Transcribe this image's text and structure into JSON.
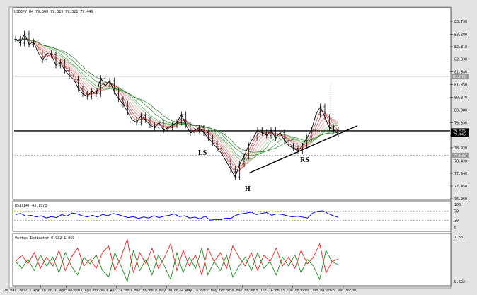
{
  "chart_data": [
    {
      "type": "line",
      "title": "USDJPY,H4  79.500 79.513 79.321 79.446",
      "symbol": "USDJPY,H4",
      "ohlc": {
        "open": 79.5,
        "high": 79.513,
        "low": 79.321,
        "close": 79.446
      },
      "ylim": [
        76.96,
        84.28
      ],
      "y_ticks": [
        "83.790",
        "83.280",
        "82.810",
        "82.330",
        "81.840",
        "81.350",
        "80.870",
        "80.380",
        "79.890",
        "79.400",
        "78.920",
        "78.420",
        "77.940",
        "77.450",
        "76.960"
      ],
      "highlighted_prices": [
        "81.672",
        "79.575",
        "79.446",
        "78.635"
      ],
      "x_ticks": [
        "26 Mar 2012",
        "3 Apr 16:00",
        "10 Apr 08:00",
        "17 Apr 00:00",
        "23 Apr 16:00",
        "1 May 08:00",
        "8 May 00:00",
        "14 May 16:00",
        "22 May 08:00",
        "30 May 00:00",
        "5 Jun 16:00",
        "13 Jun 08:00",
        "20 Jun 00:00",
        "26 Jun 16:00"
      ],
      "price_series": [
        83.1,
        82.95,
        83.3,
        82.9,
        83.0,
        82.6,
        82.3,
        82.55,
        82.5,
        82.1,
        82.2,
        81.9,
        81.7,
        81.55,
        81.2,
        81.0,
        80.9,
        81.1,
        81.0,
        81.6,
        81.3,
        81.5,
        81.1,
        80.8,
        80.6,
        80.3,
        80.0,
        79.9,
        80.15,
        80.0,
        79.8,
        79.7,
        79.9,
        79.6,
        79.7,
        79.8,
        79.9,
        80.2,
        79.8,
        79.5,
        79.6,
        79.7,
        79.5,
        79.3,
        79.1,
        78.9,
        78.7,
        78.4,
        78.1,
        77.8,
        78.3,
        78.6,
        79.0,
        79.3,
        79.6,
        79.5,
        79.4,
        79.6,
        79.3,
        79.5,
        79.2,
        79.0,
        78.9,
        78.8,
        79.0,
        79.3,
        79.6,
        80.2,
        80.5,
        80.1,
        79.7,
        79.6,
        79.45
      ],
      "annotations": [
        "LS",
        "H",
        "RS"
      ],
      "indicator_type": "moving average ribbon"
    },
    {
      "type": "line",
      "title": "RSI(14) 43.1573",
      "levels": [
        "100",
        "70",
        "30",
        "0"
      ],
      "values": [
        55,
        60,
        48,
        52,
        45,
        50,
        40,
        46,
        42,
        55,
        48,
        62,
        58,
        50,
        45,
        52,
        44,
        56,
        50,
        60,
        55,
        48,
        42,
        46,
        38,
        45,
        40,
        50,
        42,
        48,
        52,
        58,
        46,
        50,
        40,
        44,
        36,
        48,
        30,
        34,
        32,
        40,
        38,
        52,
        58,
        62,
        66,
        55,
        60,
        64,
        52,
        58,
        56,
        50,
        45,
        48,
        44,
        40,
        62,
        70,
        72,
        60,
        50,
        43
      ]
    },
    {
      "type": "line",
      "title": "Vortex Indicator 0.932 1.059",
      "levels": [
        "1.581",
        "0.522"
      ],
      "series": [
        {
          "color": "#ff0000",
          "values": [
            1.0,
            1.15,
            0.95,
            1.2,
            0.85,
            1.1,
            0.9,
            1.25,
            0.8,
            1.1,
            1.3,
            0.9,
            1.05,
            0.85,
            1.2,
            1.35,
            0.8,
            1.1,
            1.5,
            0.75,
            1.2,
            0.95,
            1.3,
            0.85,
            1.1,
            1.4,
            0.8,
            1.25,
            0.9,
            1.15,
            0.7,
            1.3,
            1.0,
            1.2,
            0.85,
            1.35,
            1.1,
            0.9,
            1.2,
            0.8,
            1.15,
            1.0,
            1.3,
            0.9,
            1.1,
            0.85,
            1.25,
            0.95,
            1.1,
            1.4,
            0.75,
            1.0,
            1.06
          ]
        },
        {
          "color": "#008000",
          "values": [
            1.0,
            0.85,
            1.05,
            0.8,
            1.15,
            0.9,
            1.1,
            0.75,
            1.2,
            0.9,
            0.7,
            1.1,
            0.95,
            1.15,
            0.8,
            0.65,
            1.2,
            0.9,
            0.55,
            1.25,
            0.8,
            1.05,
            0.7,
            1.15,
            0.9,
            0.6,
            1.2,
            0.75,
            1.1,
            0.85,
            1.3,
            0.7,
            1.0,
            0.8,
            1.15,
            0.65,
            0.9,
            1.1,
            0.8,
            1.2,
            0.85,
            1.0,
            0.7,
            1.1,
            0.9,
            1.15,
            0.75,
            1.05,
            0.9,
            0.6,
            1.25,
            1.0,
            0.93
          ]
        }
      ]
    }
  ]
}
